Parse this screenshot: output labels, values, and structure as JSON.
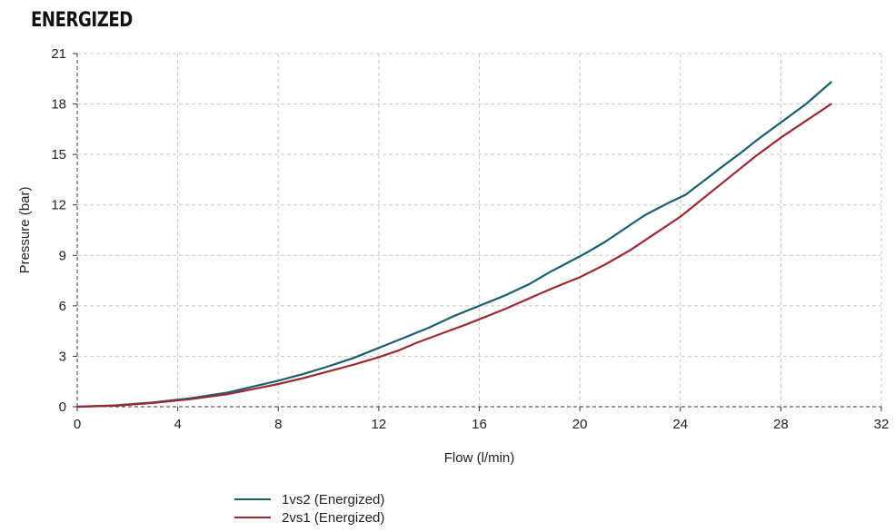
{
  "chart_data": {
    "type": "line",
    "title": "ENERGIZED",
    "xlabel": "Flow (l/min)",
    "ylabel": "Pressure (bar)",
    "xlim": [
      0,
      32
    ],
    "ylim": [
      0,
      21
    ],
    "xticks": [
      0,
      4,
      8,
      12,
      16,
      20,
      24,
      28,
      32
    ],
    "yticks": [
      0,
      3,
      6,
      9,
      12,
      15,
      18,
      21
    ],
    "grid": true,
    "legend_position": "bottom",
    "series": [
      {
        "name": "1vs2 (Energized)",
        "color": "#1b5e6d",
        "x": [
          0,
          1.5,
          3,
          4.5,
          6,
          7,
          8,
          9,
          10,
          11,
          12,
          13,
          14,
          15,
          16,
          17,
          18,
          18.8,
          19.5,
          20.2,
          21,
          22,
          22.6,
          23.5,
          24.2,
          25,
          25.6,
          26.5,
          27,
          28,
          29,
          30
        ],
        "y": [
          0,
          0.08,
          0.25,
          0.5,
          0.85,
          1.2,
          1.55,
          1.95,
          2.4,
          2.9,
          3.5,
          4.1,
          4.7,
          5.4,
          6.0,
          6.6,
          7.3,
          8.0,
          8.55,
          9.1,
          9.8,
          10.8,
          11.4,
          12.1,
          12.6,
          13.5,
          14.2,
          15.2,
          15.8,
          16.9,
          18.0,
          19.3
        ]
      },
      {
        "name": "2vs1 (Energized)",
        "color": "#9b2a33",
        "x": [
          0,
          1.5,
          3,
          4.5,
          6,
          7,
          8,
          9,
          10,
          11,
          12,
          12.8,
          13.5,
          14.5,
          15.5,
          16,
          17,
          18,
          19,
          20,
          21,
          22,
          23,
          24,
          25,
          26,
          27,
          28,
          29,
          30
        ],
        "y": [
          0,
          0.06,
          0.22,
          0.45,
          0.75,
          1.05,
          1.35,
          1.7,
          2.1,
          2.5,
          2.95,
          3.35,
          3.8,
          4.35,
          4.9,
          5.2,
          5.8,
          6.45,
          7.1,
          7.7,
          8.45,
          9.3,
          10.3,
          11.3,
          12.5,
          13.7,
          14.9,
          16.0,
          17.0,
          18.0
        ]
      }
    ]
  }
}
